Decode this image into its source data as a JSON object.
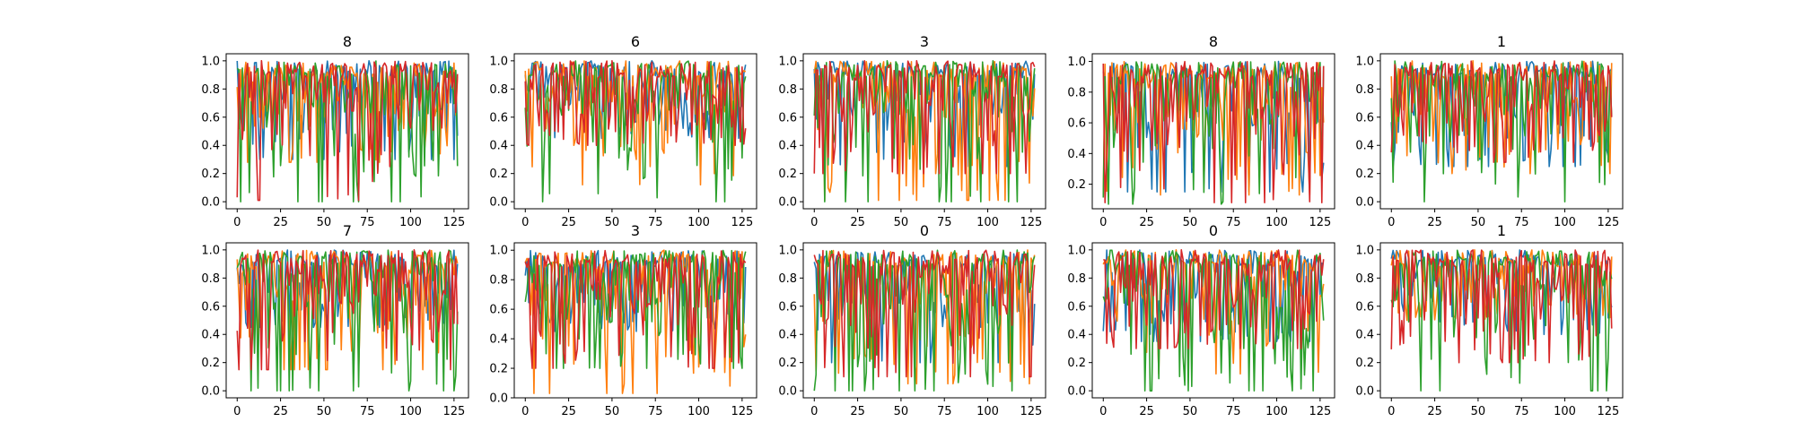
{
  "figure": {
    "layout": {
      "rows": 2,
      "cols": 5
    }
  },
  "series_colors": [
    "#1f77b4",
    "#ff7f0e",
    "#2ca02c",
    "#d62728"
  ],
  "chart_data": [
    {
      "type": "line",
      "title": "8",
      "x_range": [
        0,
        127
      ],
      "xlim": [
        -6.35,
        133.35
      ],
      "ylim": [
        -0.05,
        1.05
      ],
      "xticks": [
        0,
        25,
        50,
        75,
        100,
        125
      ],
      "yticks": [
        "0.0",
        "0.2",
        "0.4",
        "0.6",
        "0.8",
        "1.0"
      ],
      "series_min": [
        0.3,
        0.28,
        0.0,
        0.01
      ],
      "series": [
        {
          "values": []
        },
        {
          "values": []
        },
        {
          "values": []
        },
        {
          "values": []
        }
      ]
    },
    {
      "type": "line",
      "title": "6",
      "x_range": [
        0,
        127
      ],
      "xlim": [
        -6.35,
        133.35
      ],
      "ylim": [
        -0.05,
        1.05
      ],
      "xticks": [
        0,
        25,
        50,
        75,
        100,
        125
      ],
      "yticks": [
        "0.0",
        "0.2",
        "0.4",
        "0.6",
        "0.8",
        "1.0"
      ],
      "series_min": [
        0.45,
        0.12,
        0.0,
        0.4
      ],
      "series": [
        {
          "values": []
        },
        {
          "values": []
        },
        {
          "values": []
        },
        {
          "values": []
        }
      ]
    },
    {
      "type": "line",
      "title": "3",
      "x_range": [
        0,
        127
      ],
      "xlim": [
        -6.35,
        133.35
      ],
      "ylim": [
        -0.05,
        1.05
      ],
      "xticks": [
        0,
        25,
        50,
        75,
        100,
        125
      ],
      "yticks": [
        "0.0",
        "0.2",
        "0.4",
        "0.6",
        "0.8",
        "1.0"
      ],
      "series_min": [
        0.25,
        0.01,
        0.0,
        0.2
      ],
      "series": [
        {
          "values": []
        },
        {
          "values": []
        },
        {
          "values": []
        },
        {
          "values": []
        }
      ]
    },
    {
      "type": "line",
      "title": "8",
      "x_range": [
        0,
        127
      ],
      "xlim": [
        -6.35,
        133.35
      ],
      "ylim": [
        0.04,
        1.05
      ],
      "xticks": [
        0,
        25,
        50,
        75,
        100,
        125
      ],
      "yticks": [
        "0.2",
        "0.4",
        "0.6",
        "0.8",
        "1.0"
      ],
      "series_min": [
        0.15,
        0.13,
        0.07,
        0.08
      ],
      "series": [
        {
          "values": []
        },
        {
          "values": []
        },
        {
          "values": []
        },
        {
          "values": []
        }
      ]
    },
    {
      "type": "line",
      "title": "1",
      "x_range": [
        0,
        127
      ],
      "xlim": [
        -6.35,
        133.35
      ],
      "ylim": [
        -0.05,
        1.05
      ],
      "xticks": [
        0,
        25,
        50,
        75,
        100,
        125
      ],
      "yticks": [
        "0.0",
        "0.2",
        "0.4",
        "0.6",
        "0.8",
        "1.0"
      ],
      "series_min": [
        0.25,
        0.2,
        0.0,
        0.28
      ],
      "series": [
        {
          "values": []
        },
        {
          "values": []
        },
        {
          "values": []
        },
        {
          "values": []
        }
      ]
    },
    {
      "type": "line",
      "title": "7",
      "x_range": [
        0,
        127
      ],
      "xlim": [
        -6.35,
        133.35
      ],
      "ylim": [
        -0.05,
        1.05
      ],
      "xticks": [
        0,
        25,
        50,
        75,
        100,
        125
      ],
      "yticks": [
        "0.0",
        "0.2",
        "0.4",
        "0.6",
        "0.8",
        "1.0"
      ],
      "series_min": [
        0.45,
        0.15,
        0.0,
        0.15
      ],
      "series": [
        {
          "values": []
        },
        {
          "values": []
        },
        {
          "values": []
        },
        {
          "values": []
        }
      ]
    },
    {
      "type": "line",
      "title": "3",
      "x_range": [
        0,
        127
      ],
      "xlim": [
        -6.35,
        133.35
      ],
      "ylim": [
        0.0,
        1.05
      ],
      "xticks": [
        0,
        25,
        50,
        75,
        100,
        125
      ],
      "yticks": [
        "0.0",
        "0.2",
        "0.4",
        "0.6",
        "0.8",
        "1.0"
      ],
      "series_min": [
        0.45,
        0.03,
        0.2,
        0.2
      ],
      "series": [
        {
          "values": []
        },
        {
          "values": []
        },
        {
          "values": []
        },
        {
          "values": []
        }
      ]
    },
    {
      "type": "line",
      "title": "0",
      "x_range": [
        0,
        127
      ],
      "xlim": [
        -6.35,
        133.35
      ],
      "ylim": [
        -0.05,
        1.05
      ],
      "xticks": [
        0,
        25,
        50,
        75,
        100,
        125
      ],
      "yticks": [
        "0.0",
        "0.2",
        "0.4",
        "0.6",
        "0.8",
        "1.0"
      ],
      "series_min": [
        0.2,
        0.05,
        0.0,
        0.1
      ],
      "series": [
        {
          "values": []
        },
        {
          "values": []
        },
        {
          "values": []
        },
        {
          "values": []
        }
      ]
    },
    {
      "type": "line",
      "title": "0",
      "x_range": [
        0,
        127
      ],
      "xlim": [
        -6.35,
        133.35
      ],
      "ylim": [
        -0.05,
        1.05
      ],
      "xticks": [
        0,
        25,
        50,
        75,
        100,
        125
      ],
      "yticks": [
        "0.0",
        "0.2",
        "0.4",
        "0.6",
        "0.8",
        "1.0"
      ],
      "series_min": [
        0.35,
        0.12,
        0.0,
        0.3
      ],
      "series": [
        {
          "values": []
        },
        {
          "values": []
        },
        {
          "values": []
        },
        {
          "values": []
        }
      ]
    },
    {
      "type": "line",
      "title": "1",
      "x_range": [
        0,
        127
      ],
      "xlim": [
        -6.35,
        133.35
      ],
      "ylim": [
        -0.05,
        1.05
      ],
      "xticks": [
        0,
        25,
        50,
        75,
        100,
        125
      ],
      "yticks": [
        "0.0",
        "0.2",
        "0.4",
        "0.6",
        "0.8",
        "1.0"
      ],
      "series_min": [
        0.4,
        0.5,
        0.0,
        0.2
      ],
      "series": [
        {
          "values": []
        },
        {
          "values": []
        },
        {
          "values": []
        },
        {
          "values": []
        }
      ]
    }
  ]
}
